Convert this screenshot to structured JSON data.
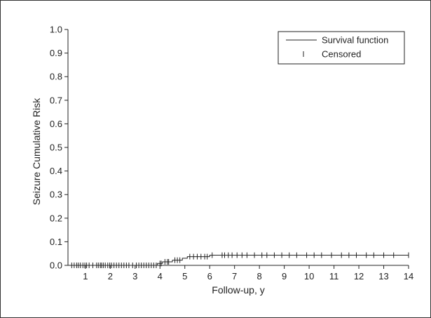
{
  "chart_data": {
    "type": "line",
    "xlabel": "Follow-up, y",
    "ylabel": "Seizure Cumulative Risk",
    "xlim": [
      0.3,
      14
    ],
    "ylim": [
      0.0,
      1.0
    ],
    "x_ticks": [
      1,
      2,
      3,
      4,
      5,
      6,
      7,
      8,
      9,
      10,
      11,
      12,
      13,
      14
    ],
    "y_ticks": [
      "0.0",
      "0.1",
      "0.2",
      "0.3",
      "0.4",
      "0.5",
      "0.6",
      "0.7",
      "0.8",
      "0.9",
      "1.0"
    ],
    "legend": {
      "position": "top-right",
      "entries": [
        {
          "label": "Survival function",
          "symbol": "line"
        },
        {
          "label": "Censored",
          "symbol": "tick"
        }
      ]
    },
    "series": [
      {
        "name": "Survival function",
        "step_points": [
          {
            "x": 0.3,
            "y": 0.0
          },
          {
            "x": 3.9,
            "y": 0.008
          },
          {
            "x": 4.1,
            "y": 0.015
          },
          {
            "x": 4.5,
            "y": 0.022
          },
          {
            "x": 4.9,
            "y": 0.03
          },
          {
            "x": 5.1,
            "y": 0.037
          },
          {
            "x": 6.0,
            "y": 0.043
          },
          {
            "x": 14.0,
            "y": 0.043
          }
        ]
      },
      {
        "name": "Censored",
        "x": [
          0.45,
          0.55,
          0.65,
          0.72,
          0.8,
          0.9,
          0.98,
          1.05,
          1.15,
          1.3,
          1.45,
          1.52,
          1.6,
          1.65,
          1.72,
          1.8,
          1.9,
          1.98,
          2.05,
          2.15,
          2.25,
          2.35,
          2.45,
          2.55,
          2.65,
          2.75,
          2.9,
          3.05,
          3.15,
          3.25,
          3.35,
          3.45,
          3.55,
          3.65,
          3.75,
          3.85,
          4.0,
          4.05,
          4.2,
          4.3,
          4.35,
          4.6,
          4.7,
          4.8,
          5.2,
          5.35,
          5.5,
          5.65,
          5.8,
          5.9,
          6.1,
          6.5,
          6.6,
          6.75,
          6.9,
          7.1,
          7.3,
          7.5,
          7.8,
          8.1,
          8.3,
          8.6,
          8.9,
          9.2,
          9.5,
          9.9,
          10.2,
          10.5,
          10.9,
          11.3,
          11.6,
          11.9,
          12.3,
          12.6,
          13.0,
          13.4,
          14.0
        ],
        "y": [
          0.0,
          0.0,
          0.0,
          0.0,
          0.0,
          0.0,
          0.0,
          0.0,
          0.0,
          0.0,
          0.0,
          0.0,
          0.0,
          0.0,
          0.0,
          0.0,
          0.0,
          0.0,
          0.0,
          0.0,
          0.0,
          0.0,
          0.0,
          0.0,
          0.0,
          0.0,
          0.0,
          0.0,
          0.0,
          0.0,
          0.0,
          0.0,
          0.0,
          0.0,
          0.0,
          0.0,
          0.008,
          0.008,
          0.015,
          0.015,
          0.015,
          0.022,
          0.022,
          0.022,
          0.037,
          0.037,
          0.037,
          0.037,
          0.037,
          0.037,
          0.043,
          0.043,
          0.043,
          0.043,
          0.043,
          0.043,
          0.043,
          0.043,
          0.043,
          0.043,
          0.043,
          0.043,
          0.043,
          0.043,
          0.043,
          0.043,
          0.043,
          0.043,
          0.043,
          0.043,
          0.043,
          0.043,
          0.043,
          0.043,
          0.043,
          0.043,
          0.043
        ]
      }
    ],
    "grid": false,
    "colors": {
      "line": "#222222",
      "axis": "#222222"
    }
  }
}
